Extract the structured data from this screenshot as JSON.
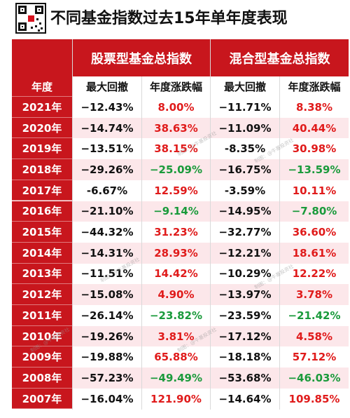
{
  "title": "不同基金指数过去15年单年度表现",
  "headers": {
    "year": "年度",
    "group1": "股票型基金总指数",
    "group2": "混合型基金总指数",
    "max_drawdown": "最大回撤",
    "annual_change": "年度涨跌幅"
  },
  "watermark": "制图：@牛基投资社",
  "rows": [
    {
      "year": "2021年",
      "stock_dd": "−12.43%",
      "stock_chg": "8.00%",
      "mix_dd": "−11.71%",
      "mix_chg": "8.38%"
    },
    {
      "year": "2020年",
      "stock_dd": "−14.74%",
      "stock_chg": "38.63%",
      "mix_dd": "−11.09%",
      "mix_chg": "40.44%"
    },
    {
      "year": "2019年",
      "stock_dd": "−13.51%",
      "stock_chg": "38.15%",
      "mix_dd": "-8.35%",
      "mix_chg": "30.98%"
    },
    {
      "year": "2018年",
      "stock_dd": "−29.26%",
      "stock_chg": "−25.09%",
      "mix_dd": "−16.75%",
      "mix_chg": "−13.59%"
    },
    {
      "year": "2017年",
      "stock_dd": "-6.67%",
      "stock_chg": "12.59%",
      "mix_dd": "-3.59%",
      "mix_chg": "10.11%"
    },
    {
      "year": "2016年",
      "stock_dd": "−21.10%",
      "stock_chg": "−9.14%",
      "mix_dd": "−14.95%",
      "mix_chg": "−7.80%"
    },
    {
      "year": "2015年",
      "stock_dd": "−44.32%",
      "stock_chg": "31.23%",
      "mix_dd": "−32.77%",
      "mix_chg": "36.60%"
    },
    {
      "year": "2014年",
      "stock_dd": "−14.31%",
      "stock_chg": "28.93%",
      "mix_dd": "−12.21%",
      "mix_chg": "18.61%"
    },
    {
      "year": "2013年",
      "stock_dd": "−11.51%",
      "stock_chg": "14.42%",
      "mix_dd": "−10.29%",
      "mix_chg": "12.22%"
    },
    {
      "year": "2012年",
      "stock_dd": "−15.08%",
      "stock_chg": "4.90%",
      "mix_dd": "−13.97%",
      "mix_chg": "3.78%"
    },
    {
      "year": "2011年",
      "stock_dd": "−26.14%",
      "stock_chg": "−23.82%",
      "mix_dd": "−23.59%",
      "mix_chg": "−21.42%"
    },
    {
      "year": "2010年",
      "stock_dd": "−19.26%",
      "stock_chg": "3.81%",
      "mix_dd": "−17.12%",
      "mix_chg": "4.58%"
    },
    {
      "year": "2009年",
      "stock_dd": "−19.88%",
      "stock_chg": "65.88%",
      "mix_dd": "−18.18%",
      "mix_chg": "57.12%"
    },
    {
      "year": "2008年",
      "stock_dd": "−57.23%",
      "stock_chg": "−49.49%",
      "mix_dd": "−53.68%",
      "mix_chg": "−46.03%"
    },
    {
      "year": "2007年",
      "stock_dd": "−16.04%",
      "stock_chg": "121.90%",
      "mix_dd": "−14.64%",
      "mix_chg": "109.85%"
    }
  ],
  "colors": {
    "header_red": "#c8161d",
    "alt_row": "#fce7ea",
    "positive": "#e01b1b",
    "negative": "#1a9a3b"
  }
}
